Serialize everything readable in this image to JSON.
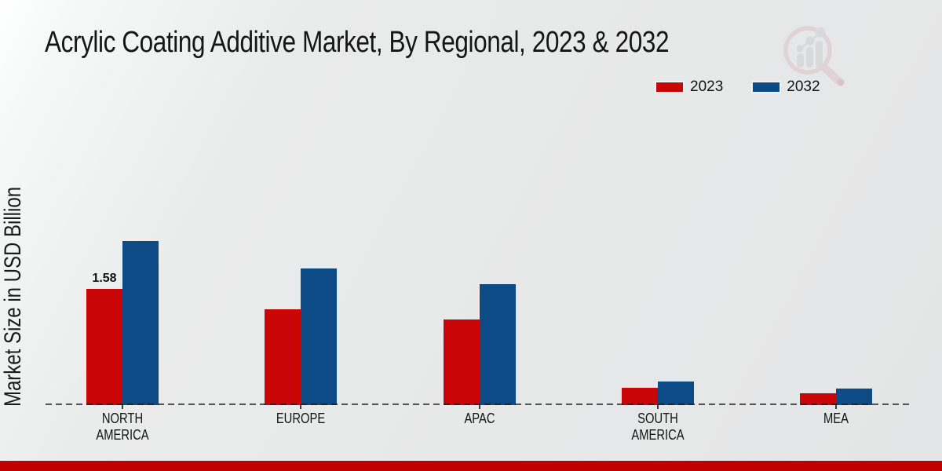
{
  "title": "Acrylic Coating Additive Market, By Regional, 2023 & 2032",
  "ylabel": "Market Size in USD Billion",
  "legend": [
    {
      "label": "2023",
      "color": "#c90507"
    },
    {
      "label": "2032",
      "color": "#0d4b87"
    }
  ],
  "colors": {
    "series_2023": "#c90507",
    "series_2032": "#0d4b87",
    "footer_bar": "#c10000",
    "axis_dash": "#1c1c1c"
  },
  "logo": {
    "name": "magnifier-bar-chart-watermark"
  },
  "chart_data": {
    "type": "bar",
    "categories": [
      "NORTH AMERICA",
      "EUROPE",
      "APAC",
      "SOUTH AMERICA",
      "MEA"
    ],
    "category_lines": [
      [
        "NORTH",
        "AMERICA"
      ],
      [
        "EUROPE"
      ],
      [
        "APAC"
      ],
      [
        "SOUTH",
        "AMERICA"
      ],
      [
        "MEA"
      ]
    ],
    "series": [
      {
        "name": "2023",
        "color": "#c90507",
        "values": [
          1.58,
          1.3,
          1.16,
          0.23,
          0.16
        ]
      },
      {
        "name": "2032",
        "color": "#0d4b87",
        "values": [
          2.23,
          1.86,
          1.64,
          0.32,
          0.22
        ]
      }
    ],
    "title": "Acrylic Coating Additive Market, By Regional, 2023 & 2032",
    "xlabel": "",
    "ylabel": "Market Size in USD Billion",
    "ylim": [
      0,
      2.4
    ],
    "grid": false,
    "baseline_style": "dashed",
    "legend_position": "top-right",
    "data_labels": [
      {
        "series": "2023",
        "category_index": 0,
        "text": "1.58"
      }
    ]
  }
}
